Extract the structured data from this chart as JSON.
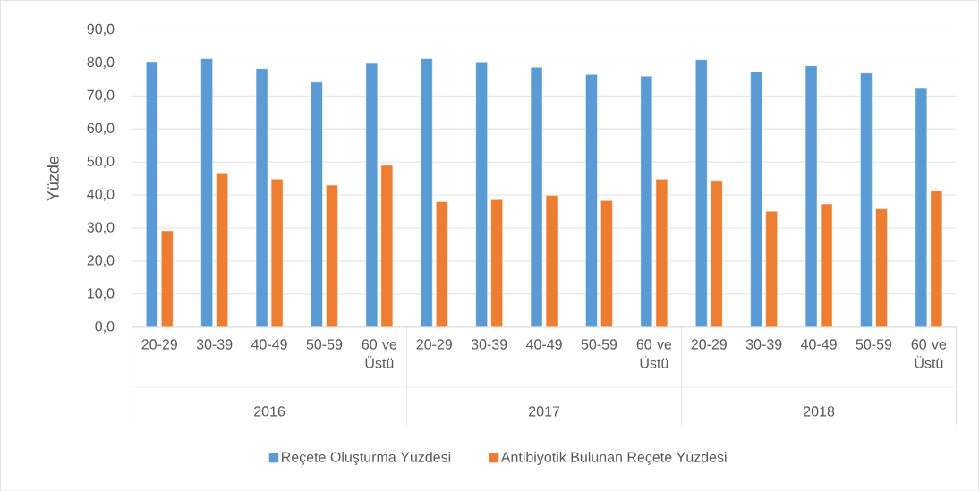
{
  "chart_data": {
    "type": "bar",
    "ylabel": "Yüzde",
    "categories": [
      "20-29",
      "30-39",
      "40-49",
      "50-59",
      "60 ve Üstü",
      "20-29",
      "30-39",
      "40-49",
      "50-59",
      "60 ve Üstü",
      "20-29",
      "30-39",
      "40-49",
      "50-59",
      "60 ve Üstü"
    ],
    "series": [
      {
        "name": "Reçete Oluşturma Yüzdesi",
        "color": "#5b9bd5",
        "values": [
          80.4,
          81.3,
          78.3,
          74.2,
          79.8,
          81.3,
          80.3,
          78.7,
          76.5,
          76.0,
          81.0,
          77.4,
          79.1,
          76.9,
          72.5
        ]
      },
      {
        "name": "Antibiyotik Bulunan Reçete Yüzdesi",
        "color": "#ed7d31",
        "values": [
          29.2,
          46.7,
          44.8,
          43.0,
          49.0,
          38.0,
          38.6,
          39.9,
          38.3,
          44.8,
          44.4,
          35.1,
          37.3,
          35.8,
          41.2
        ]
      }
    ],
    "annotations": [
      "2016",
      "2017",
      "2018"
    ],
    "ylim": [
      0,
      90
    ],
    "yticks": [
      {
        "value": 0,
        "label": "0,0"
      },
      {
        "value": 10,
        "label": "10,0"
      },
      {
        "value": 20,
        "label": "20,0"
      },
      {
        "value": 30,
        "label": "30,0"
      },
      {
        "value": 40,
        "label": "40,0"
      },
      {
        "value": 50,
        "label": "50,0"
      },
      {
        "value": 60,
        "label": "60,0"
      },
      {
        "value": 70,
        "label": "70,0"
      },
      {
        "value": 80,
        "label": "80,0"
      },
      {
        "value": 90,
        "label": "90,0"
      }
    ],
    "grid": "y",
    "legend": "bottom"
  }
}
